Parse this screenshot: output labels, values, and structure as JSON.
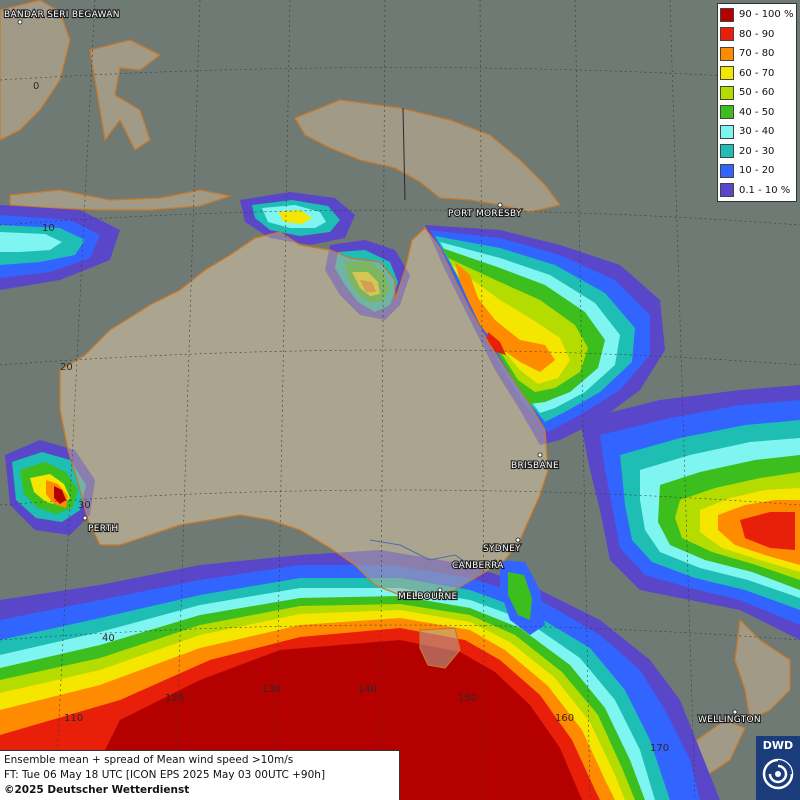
{
  "legend": {
    "items": [
      {
        "label": "90 - 100 %",
        "color": "#b50000"
      },
      {
        "label": "80 - 90",
        "color": "#e8200a"
      },
      {
        "label": "70 - 80",
        "color": "#ff8c00"
      },
      {
        "label": "60 - 70",
        "color": "#f5e600"
      },
      {
        "label": "50 - 60",
        "color": "#b4dc00"
      },
      {
        "label": "40 - 50",
        "color": "#3cbe1e"
      },
      {
        "label": "30 - 40",
        "color": "#7ef5f0"
      },
      {
        "label": "20 - 30",
        "color": "#1ebeb4"
      },
      {
        "label": "10 - 20",
        "color": "#3264ff"
      },
      {
        "label": "0.1 - 10 %",
        "color": "#5a46c8"
      }
    ]
  },
  "cities": {
    "bandar": "BANDAR SERI BEGAWAN",
    "port_moresby": "PORT MORESBY",
    "brisbane": "BRISBANE",
    "perth": "PERTH",
    "sydney": "SYDNEY",
    "canberra": "CANBERRA",
    "melbourne": "MELBOURNE",
    "wellington": "WELLINGTON"
  },
  "grid_labels": {
    "lat_0": "0",
    "lat_10": "10",
    "lat_20": "20",
    "lat_30": "30",
    "lat_40": "40",
    "lon_110": "110",
    "lon_120": "120",
    "lon_130": "130",
    "lon_140": "140",
    "lon_150": "150",
    "lon_160": "160",
    "lon_170": "170"
  },
  "info": {
    "line1": "Ensemble mean + spread of Mean wind speed >10m/s",
    "line2": "FT: Tue 06 May 18 UTC [ICON EPS 2025 May 03 00UTC +90h]",
    "copyright": "©2025 Deutscher Wetterdienst"
  },
  "logo": {
    "text": "DWD"
  }
}
